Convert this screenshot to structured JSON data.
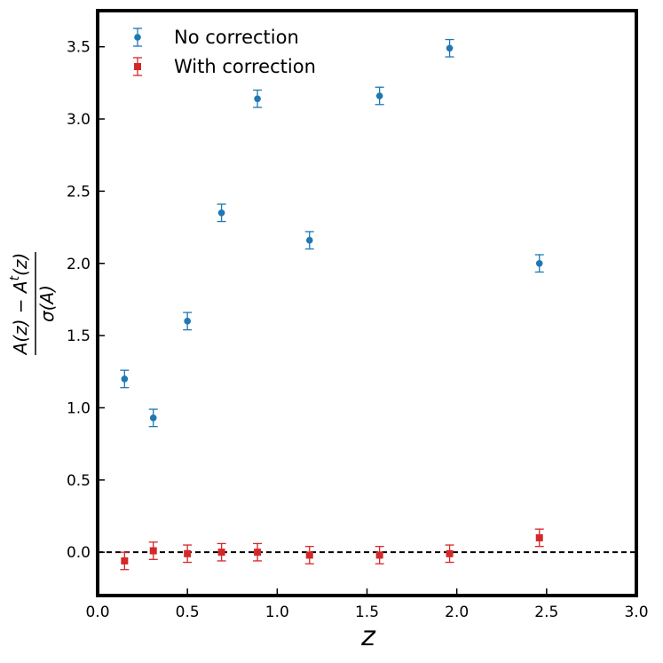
{
  "chart_data": {
    "type": "scatter",
    "title": "",
    "xlabel": "z",
    "ylabel": {
      "numerator": "A(z) − A",
      "superscript": "t",
      "numerator_tail": "(z)",
      "denominator": "σ(A)"
    },
    "xlim": [
      0.0,
      3.0
    ],
    "ylim": [
      -0.3,
      3.75
    ],
    "xticks": [
      0.0,
      0.5,
      1.0,
      1.5,
      2.0,
      2.5,
      3.0
    ],
    "xtick_labels": [
      "0.0",
      "0.5",
      "1.0",
      "1.5",
      "2.0",
      "2.5",
      "3.0"
    ],
    "yticks": [
      0.0,
      0.5,
      1.0,
      1.5,
      2.0,
      2.5,
      3.0,
      3.5
    ],
    "ytick_labels": [
      "0.0",
      "0.5",
      "1.0",
      "1.5",
      "2.0",
      "2.5",
      "3.0",
      "3.5"
    ],
    "grid": false,
    "legend_position": "top-left",
    "reference_line": {
      "y": 0.0,
      "style": "dashed",
      "color": "#000000"
    },
    "series": [
      {
        "name": "No correction",
        "marker": "circle",
        "color": "#1f77b4",
        "x": [
          0.15,
          0.31,
          0.5,
          0.69,
          0.89,
          1.18,
          1.57,
          1.96,
          2.46
        ],
        "y": [
          1.2,
          0.93,
          1.6,
          2.35,
          3.14,
          2.16,
          3.16,
          3.49,
          2.0
        ],
        "yerr": [
          0.06,
          0.06,
          0.06,
          0.06,
          0.06,
          0.06,
          0.06,
          0.06,
          0.06
        ]
      },
      {
        "name": "With correction",
        "marker": "square",
        "color": "#d62728",
        "x": [
          0.15,
          0.31,
          0.5,
          0.69,
          0.89,
          1.18,
          1.57,
          1.96,
          2.46
        ],
        "y": [
          -0.06,
          0.01,
          -0.01,
          0.0,
          0.0,
          -0.02,
          -0.02,
          -0.01,
          0.1
        ],
        "yerr": [
          0.06,
          0.06,
          0.06,
          0.06,
          0.06,
          0.06,
          0.06,
          0.06,
          0.06
        ]
      }
    ]
  }
}
